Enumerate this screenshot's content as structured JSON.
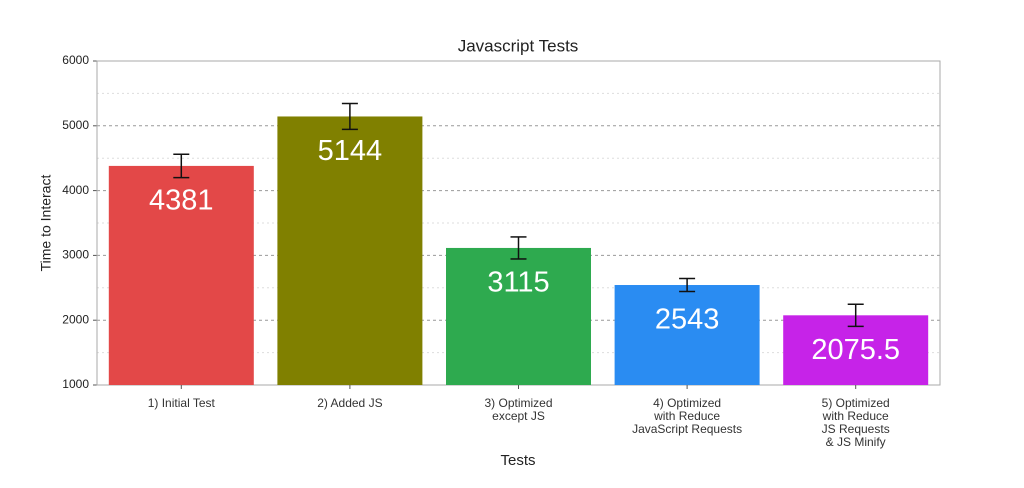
{
  "chart_data": {
    "type": "bar",
    "title": "Javascript Tests",
    "x_label": "Tests",
    "y_label": "Time to Interact",
    "categories": [
      "1) Initial Test",
      "2) Added JS",
      "3) Optimized\nexcept JS",
      "4) Optimized\nwith Reduce\nJavaScript Requests",
      "5) Optimized\nwith Reduce\nJS Requests\n& JS Minify"
    ],
    "values": [
      4381,
      5144,
      3115,
      2543,
      2075.5
    ],
    "errors": [
      180,
      200,
      170,
      100,
      170
    ],
    "colors": [
      "#e34848",
      "#808000",
      "#2eaa4f",
      "#2a8cf2",
      "#c623e8"
    ],
    "ylim": [
      1000,
      6000
    ],
    "yticks": [
      1000,
      2000,
      3000,
      4000,
      5000,
      6000
    ],
    "minor_yticks": [
      1500,
      2500,
      3500,
      4500,
      5500
    ],
    "grid": true
  }
}
